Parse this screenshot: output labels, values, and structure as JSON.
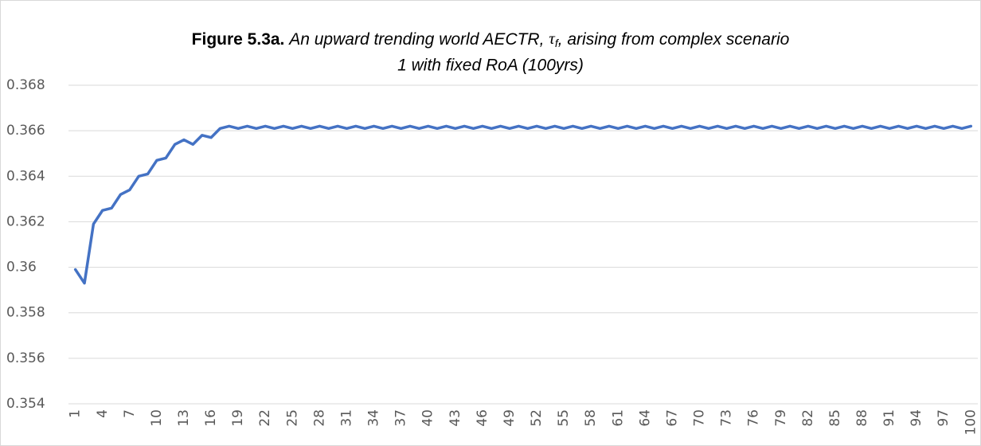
{
  "chart_data": {
    "type": "line",
    "title_label": "Figure 5.3a.",
    "title_line1": [
      "An upward trending world AECTR, ",
      "τ",
      "f",
      ", arising from complex scenario"
    ],
    "title_line2": "1 with fixed RoA (100yrs)",
    "categories": [
      "1",
      null,
      null,
      "4",
      null,
      null,
      "7",
      null,
      null,
      "10",
      null,
      null,
      "13",
      null,
      null,
      "16",
      null,
      null,
      "19",
      null,
      null,
      "22",
      null,
      null,
      "25",
      null,
      null,
      "28",
      null,
      null,
      "31",
      null,
      null,
      "34",
      null,
      null,
      "37",
      null,
      null,
      "40",
      null,
      null,
      "43",
      null,
      null,
      "46",
      null,
      null,
      "49",
      null,
      null,
      "52",
      null,
      null,
      "55",
      null,
      null,
      "58",
      null,
      null,
      "61",
      null,
      null,
      "64",
      null,
      null,
      "67",
      null,
      null,
      "70",
      null,
      null,
      "73",
      null,
      null,
      "76",
      null,
      null,
      "79",
      null,
      null,
      "82",
      null,
      null,
      "85",
      null,
      null,
      "88",
      null,
      null,
      "91",
      null,
      null,
      "94",
      null,
      null,
      "97",
      null,
      null,
      "100"
    ],
    "values": [
      0.3599,
      0.3593,
      0.3619,
      0.3625,
      0.3626,
      0.3632,
      0.3634,
      0.364,
      0.3641,
      0.3647,
      0.3648,
      0.3654,
      0.3656,
      0.3654,
      0.3658,
      0.3657,
      0.3661,
      0.3662,
      0.3661,
      0.3662,
      0.3661,
      0.3662,
      0.3661,
      0.3662,
      0.3661,
      0.3662,
      0.3661,
      0.3662,
      0.3661,
      0.3662,
      0.3661,
      0.3662,
      0.3661,
      0.3662,
      0.3661,
      0.3662,
      0.3661,
      0.3662,
      0.3661,
      0.3662,
      0.3661,
      0.3662,
      0.3661,
      0.3662,
      0.3661,
      0.3662,
      0.3661,
      0.3662,
      0.3661,
      0.3662,
      0.3661,
      0.3662,
      0.3661,
      0.3662,
      0.3661,
      0.3662,
      0.3661,
      0.3662,
      0.3661,
      0.3662,
      0.3661,
      0.3662,
      0.3661,
      0.3662,
      0.3661,
      0.3662,
      0.3661,
      0.3662,
      0.3661,
      0.3662,
      0.3661,
      0.3662,
      0.3661,
      0.3662,
      0.3661,
      0.3662,
      0.3661,
      0.3662,
      0.3661,
      0.3662,
      0.3661,
      0.3662,
      0.3661,
      0.3662,
      0.3661,
      0.3662,
      0.3661,
      0.3662,
      0.3661,
      0.3662,
      0.3661,
      0.3662,
      0.3661,
      0.3662,
      0.3661,
      0.3662,
      0.3661,
      0.3662,
      0.3661,
      0.3662
    ],
    "color": "#4472c4",
    "ylim": [
      0.354,
      0.368
    ],
    "yticks": [
      0.354,
      0.356,
      0.358,
      0.36,
      0.362,
      0.364,
      0.366,
      0.368
    ],
    "grid": true
  }
}
